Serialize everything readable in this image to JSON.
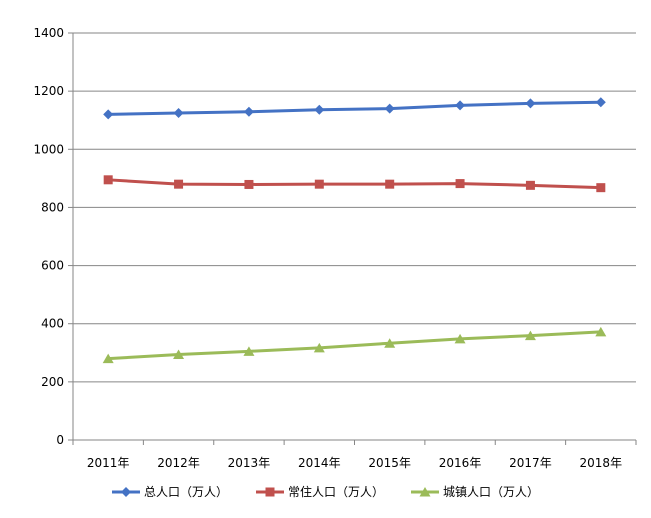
{
  "chart_data": {
    "type": "line",
    "categories": [
      "2011年",
      "2012年",
      "2013年",
      "2014年",
      "2015年",
      "2016年",
      "2017年",
      "2018年"
    ],
    "ylim": [
      0,
      1400
    ],
    "yticks": [
      0,
      200,
      400,
      600,
      800,
      1000,
      1200,
      1400
    ],
    "grid": true,
    "legend_position": "bottom",
    "series": [
      {
        "name": "总人口（万人）",
        "color": "#4472C4",
        "marker": "diamond",
        "values": [
          1120,
          1125,
          1129,
          1136,
          1140,
          1151,
          1158,
          1162
        ]
      },
      {
        "name": "常住人口（万人）",
        "color": "#C0504D",
        "marker": "square",
        "values": [
          895,
          880,
          879,
          880,
          880,
          882,
          876,
          868
        ]
      },
      {
        "name": "城镇人口（万人）",
        "color": "#9BBB59",
        "marker": "triangle",
        "values": [
          280,
          294,
          305,
          317,
          333,
          348,
          359,
          372
        ]
      }
    ]
  }
}
